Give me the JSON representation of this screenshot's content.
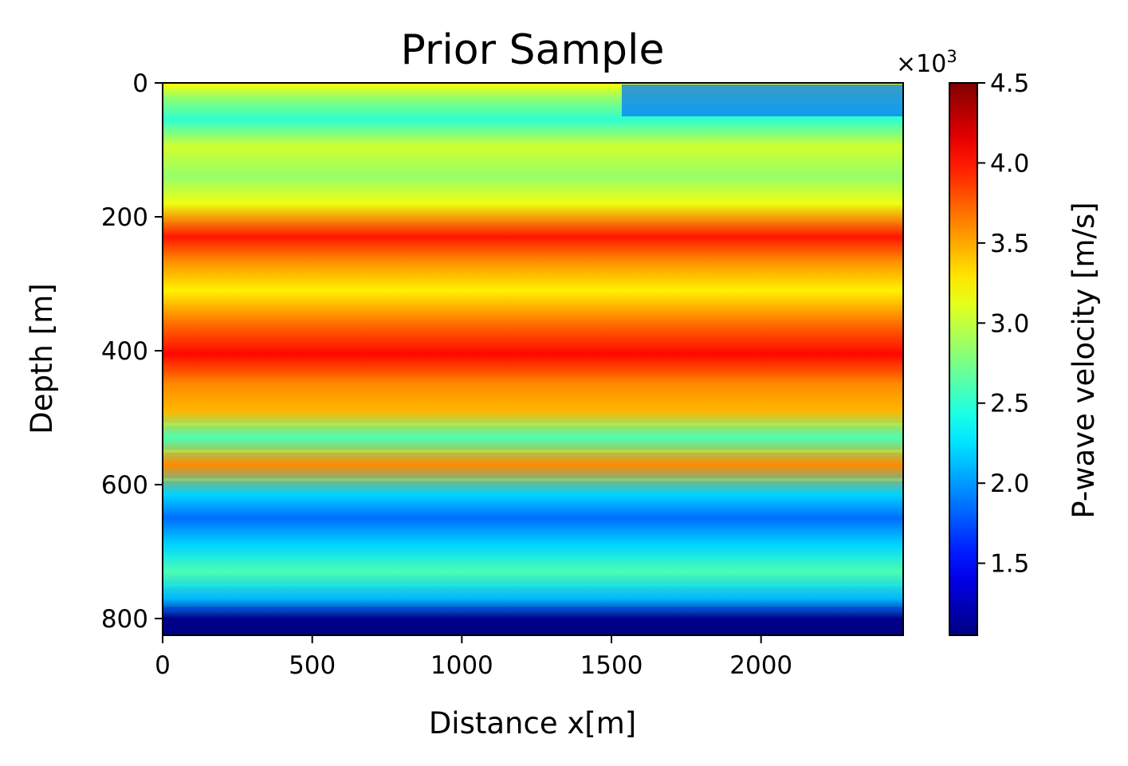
{
  "chart_data": {
    "type": "heatmap",
    "title": "Prior Sample",
    "xlabel": "Distance x[m]",
    "ylabel": "Depth [m]",
    "xlim": [
      0,
      2475
    ],
    "ylim": [
      825,
      0
    ],
    "x_ticks": [
      "0",
      "500",
      "1000",
      "1500",
      "2000"
    ],
    "x_tick_values": [
      0,
      500,
      1000,
      1500,
      2000
    ],
    "y_ticks": [
      "0",
      "200",
      "400",
      "600",
      "800"
    ],
    "y_tick_values": [
      0,
      200,
      400,
      600,
      800
    ],
    "colormap": "jet",
    "colorbar": {
      "label": "P-wave velocity [m/s]",
      "multiplier": "×10",
      "multiplier_exp": "3",
      "range": [
        1.05,
        4.5
      ],
      "ticks": [
        "1.5",
        "2.0",
        "2.5",
        "3.0",
        "3.5",
        "4.0",
        "4.5"
      ],
      "tick_values": [
        1.5,
        2.0,
        2.5,
        3.0,
        3.5,
        4.0,
        4.5
      ]
    },
    "layers": [
      {
        "depth": 0,
        "velocity": 3.2
      },
      {
        "depth": 25,
        "velocity": 2.8
      },
      {
        "depth": 55,
        "velocity": 2.5
      },
      {
        "depth": 95,
        "velocity": 3.05
      },
      {
        "depth": 140,
        "velocity": 2.85
      },
      {
        "depth": 180,
        "velocity": 3.15
      },
      {
        "depth": 230,
        "velocity": 4.0
      },
      {
        "depth": 265,
        "velocity": 3.6
      },
      {
        "depth": 310,
        "velocity": 3.25
      },
      {
        "depth": 360,
        "velocity": 3.7
      },
      {
        "depth": 405,
        "velocity": 4.05
      },
      {
        "depth": 450,
        "velocity": 3.6
      },
      {
        "depth": 490,
        "velocity": 3.45
      },
      {
        "depth": 530,
        "velocity": 2.6
      },
      {
        "depth": 570,
        "velocity": 3.6
      },
      {
        "depth": 615,
        "velocity": 2.2
      },
      {
        "depth": 650,
        "velocity": 1.85
      },
      {
        "depth": 690,
        "velocity": 2.2
      },
      {
        "depth": 730,
        "velocity": 2.6
      },
      {
        "depth": 770,
        "velocity": 2.1
      },
      {
        "depth": 800,
        "velocity": 1.1
      },
      {
        "depth": 825,
        "velocity": 1.05
      }
    ]
  }
}
